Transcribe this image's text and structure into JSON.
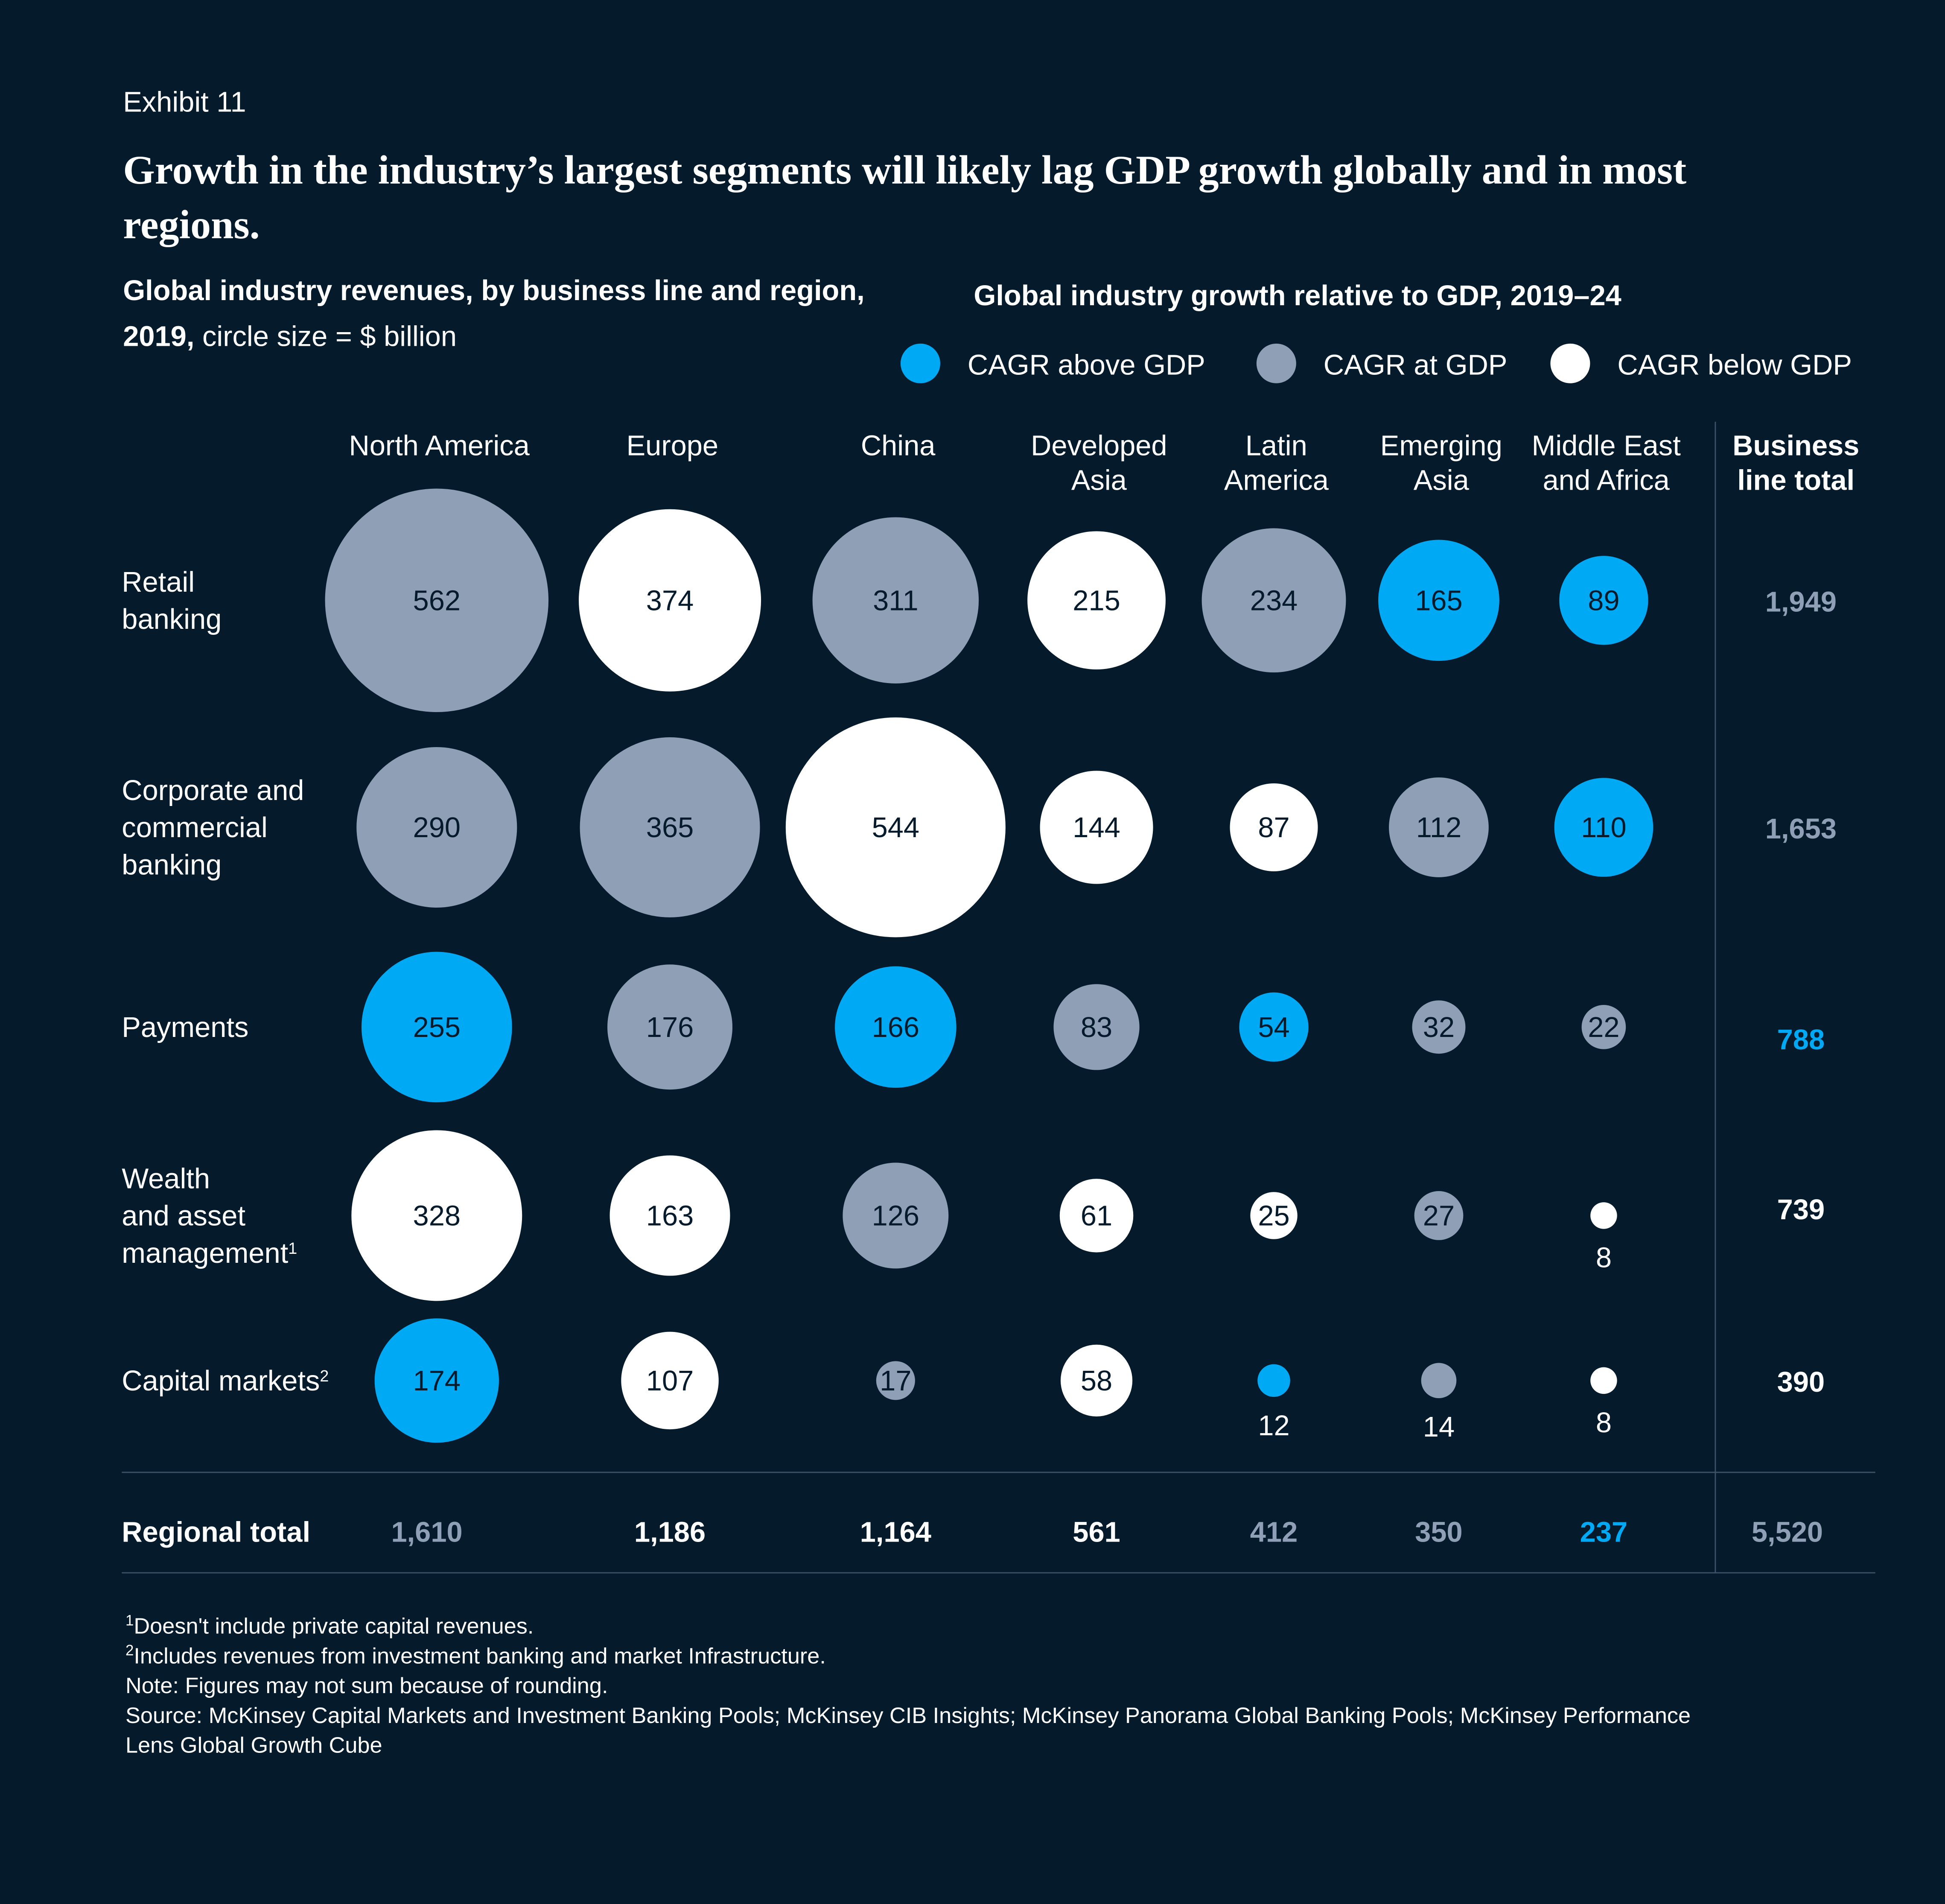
{
  "exhibit": "Exhibit 11",
  "title_lines": [
    "Growth in the industry’s largest segments will likely lag GDP growth globally and in most",
    "regions."
  ],
  "chart_data": {
    "type": "bubble-matrix",
    "subtitle_lines": [
      "Global industry revenues, by business line and region,",
      "2019,"
    ],
    "subtitle_note": "circle size = $ billion",
    "legend_title": "Global industry growth relative to GDP, 2019–24",
    "legend": [
      {
        "name": "CAGR above GDP",
        "color": "#00a9f4"
      },
      {
        "name": "CAGR at GDP",
        "color": "#8fa0b6"
      },
      {
        "name": "CAGR below GDP",
        "color": "#ffffff"
      }
    ],
    "columns": [
      [
        "North America"
      ],
      [
        "Europe"
      ],
      [
        "China"
      ],
      [
        "Developed",
        "Asia"
      ],
      [
        "Latin",
        "America"
      ],
      [
        "Emerging",
        "Asia"
      ],
      [
        "Middle East",
        "and Africa"
      ]
    ],
    "total_header": [
      "Business",
      "line total"
    ],
    "rows": [
      {
        "name": [
          "Retail",
          "banking"
        ],
        "values": [
          562,
          374,
          311,
          215,
          234,
          165,
          89
        ],
        "growth": [
          1,
          2,
          1,
          2,
          1,
          0,
          0
        ],
        "total": 1949,
        "total_label": "1,949",
        "total_growth": 1
      },
      {
        "name": [
          "Corporate and",
          "commercial",
          "banking"
        ],
        "values": [
          290,
          365,
          544,
          144,
          87,
          112,
          110
        ],
        "growth": [
          1,
          1,
          2,
          2,
          2,
          1,
          0
        ],
        "total": 1653,
        "total_label": "1,653",
        "total_growth": 1
      },
      {
        "name": [
          "Payments"
        ],
        "values": [
          255,
          176,
          166,
          83,
          54,
          32,
          22
        ],
        "growth": [
          0,
          1,
          0,
          1,
          0,
          1,
          1
        ],
        "total": 788,
        "total_growth": 0
      },
      {
        "name": [
          "Wealth",
          "and asset",
          "management"
        ],
        "note": "1",
        "values": [
          328,
          163,
          126,
          61,
          25,
          27,
          8
        ],
        "growth": [
          2,
          2,
          1,
          2,
          2,
          1,
          2
        ],
        "total": 739,
        "total_growth": 2
      },
      {
        "name": [
          "Capital markets"
        ],
        "note": "2",
        "values": [
          174,
          107,
          17,
          58,
          12,
          14,
          8
        ],
        "growth": [
          0,
          2,
          1,
          2,
          0,
          1,
          2
        ],
        "total": 390,
        "total_growth": 2
      }
    ],
    "regional_total_name": "Regional total",
    "regional_totals": [
      1610,
      1186,
      1164,
      561,
      412,
      350,
      237
    ],
    "regional_total_labels": [
      "1,610",
      "1,186",
      "1,164",
      "561",
      "412",
      "350",
      "237"
    ],
    "regional_total_growth": [
      1,
      2,
      2,
      2,
      1,
      1,
      0
    ],
    "grand_total": 5520,
    "grand_total_label": "5,520",
    "grand_total_growth": 1
  },
  "footnotes": [
    {
      "marker": "1",
      "text": "Doesn't include private capital revenues."
    },
    {
      "marker": "2",
      "text": "Includes revenues from investment banking and market Infrastructure."
    },
    {
      "text": "Note: Figures may not sum because of rounding."
    },
    {
      "text": "Source: McKinsey Capital Markets and Investment Banking Pools; McKinsey CIB Insights; McKinsey Panorama Global Banking Pools; McKinsey Performance"
    },
    {
      "text": "Lens Global Growth Cube"
    }
  ]
}
